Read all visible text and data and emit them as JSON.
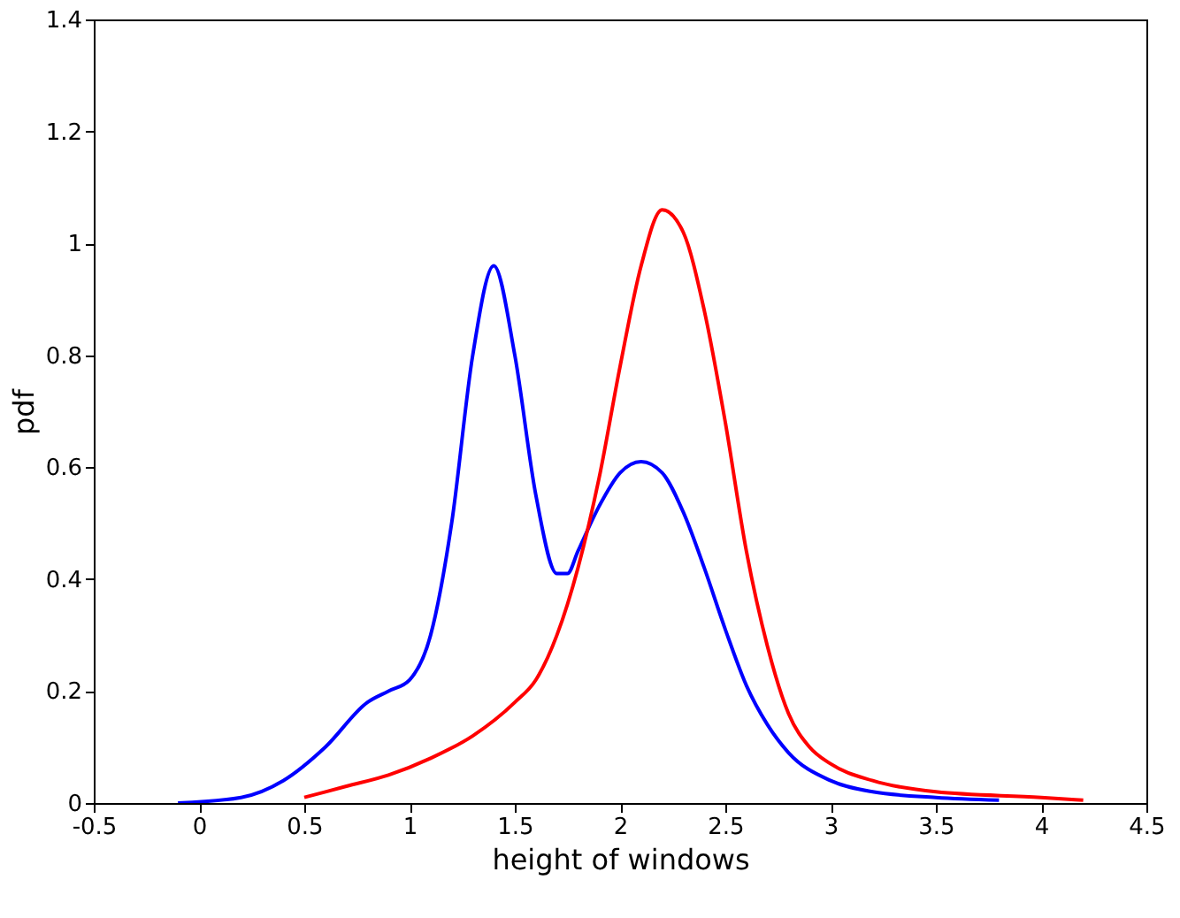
{
  "chart_data": {
    "type": "line",
    "xlabel": "height of windows",
    "ylabel": "pdf",
    "xlim": [
      -0.5,
      4.5
    ],
    "ylim": [
      0,
      1.4
    ],
    "xticks": [
      -0.5,
      0,
      0.5,
      1,
      1.5,
      2,
      2.5,
      3,
      3.5,
      4,
      4.5
    ],
    "yticks": [
      0,
      0.2,
      0.4,
      0.6,
      0.8,
      1,
      1.2,
      1.4
    ],
    "grid": false,
    "marker": "none",
    "line_style": "solid",
    "series": [
      {
        "color": "#0000ff",
        "x": [
          -0.1,
          0.2,
          0.4,
          0.6,
          0.8,
          0.9,
          1.0,
          1.1,
          1.2,
          1.3,
          1.4,
          1.5,
          1.6,
          1.7,
          1.75,
          1.8,
          1.9,
          2.0,
          2.1,
          2.2,
          2.3,
          2.4,
          2.5,
          2.6,
          2.7,
          2.8,
          3.0,
          3.2,
          3.5,
          3.8
        ],
        "values": [
          0,
          0.01,
          0.04,
          0.1,
          0.18,
          0.2,
          0.22,
          0.3,
          0.5,
          0.8,
          0.96,
          0.8,
          0.55,
          0.41,
          0.41,
          0.45,
          0.53,
          0.59,
          0.61,
          0.59,
          0.52,
          0.42,
          0.31,
          0.21,
          0.14,
          0.09,
          0.04,
          0.02,
          0.01,
          0.005
        ]
      },
      {
        "color": "#ff0000",
        "x": [
          0.5,
          0.7,
          0.9,
          1.1,
          1.3,
          1.5,
          1.6,
          1.7,
          1.8,
          1.9,
          2.0,
          2.1,
          2.2,
          2.3,
          2.4,
          2.5,
          2.6,
          2.7,
          2.8,
          2.9,
          3.0,
          3.2,
          3.5,
          4.0,
          4.2
        ],
        "values": [
          0.01,
          0.03,
          0.05,
          0.08,
          0.12,
          0.18,
          0.22,
          0.3,
          0.42,
          0.58,
          0.78,
          0.96,
          1.06,
          1.02,
          0.88,
          0.68,
          0.45,
          0.28,
          0.16,
          0.1,
          0.07,
          0.04,
          0.02,
          0.01,
          0.005
        ]
      }
    ]
  }
}
